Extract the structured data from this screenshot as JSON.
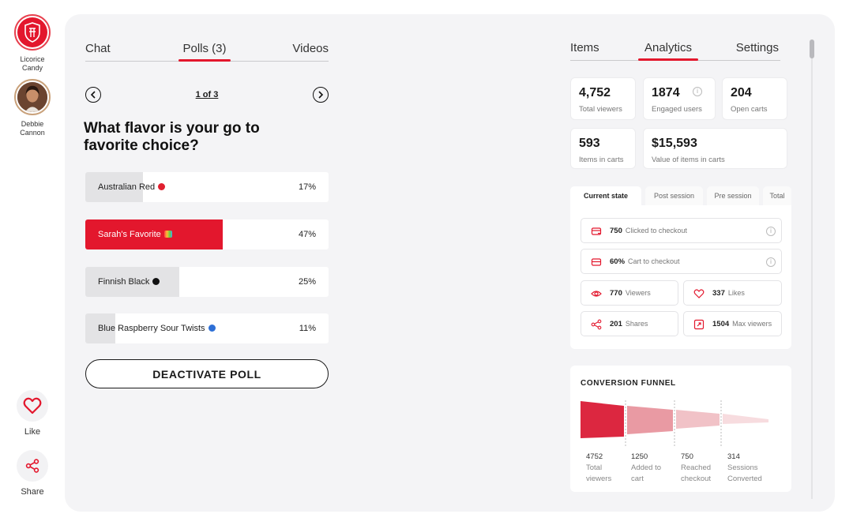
{
  "hosts": [
    {
      "name_line1": "Licorice",
      "name_line2": "Candy"
    },
    {
      "name_line1": "Debbie",
      "name_line2": "Cannon"
    }
  ],
  "rail_actions": {
    "like": "Like",
    "share": "Share"
  },
  "left_tabs": [
    {
      "label": "Chat",
      "active": false
    },
    {
      "label": "Polls (3)",
      "active": true
    },
    {
      "label": "Videos",
      "active": false
    }
  ],
  "poll": {
    "pager": "1 of 3",
    "question": "What flavor is your go to favorite choice?",
    "options": [
      {
        "label": "Australian Red",
        "percent_label": "17%",
        "percent": 17,
        "emoji_color": "#e0202f",
        "selected": false
      },
      {
        "label": "Sarah's Favorite",
        "percent_label": "47%",
        "percent": 47,
        "emoji_color": "rainbow",
        "selected": true
      },
      {
        "label": "Finnish Black",
        "percent_label": "25%",
        "percent": 25,
        "emoji_color": "#111111",
        "selected": false
      },
      {
        "label": "Blue Raspberry Sour Twists",
        "percent_label": "11%",
        "percent": 11,
        "emoji_color": "#2d6fd6",
        "selected": false
      }
    ],
    "deactivate_label": "DEACTIVATE POLL"
  },
  "right_tabs": [
    {
      "label": "Items",
      "active": false
    },
    {
      "label": "Analytics",
      "active": true
    },
    {
      "label": "Settings",
      "active": false
    }
  ],
  "stats": {
    "total_viewers": {
      "value": "4,752",
      "label": "Total viewers"
    },
    "engaged_users": {
      "value": "1874",
      "label": "Engaged users"
    },
    "open_carts": {
      "value": "204",
      "label": "Open carts"
    },
    "items_in_carts": {
      "value": "593",
      "label": "Items in carts"
    },
    "value_in_carts": {
      "value": "$15,593",
      "label": "Value of items in carts"
    }
  },
  "session_tabs": [
    {
      "label": "Current state",
      "active": true
    },
    {
      "label": "Post session",
      "active": false
    },
    {
      "label": "Pre session",
      "active": false
    },
    {
      "label": "Total",
      "active": false
    }
  ],
  "metrics": {
    "clicked_checkout": {
      "value": "750",
      "label": "Clicked to checkout"
    },
    "cart_checkout": {
      "value": "60%",
      "label": "Cart to checkout"
    },
    "viewers": {
      "value": "770",
      "label": "Viewers"
    },
    "likes": {
      "value": "337",
      "label": "Likes"
    },
    "shares": {
      "value": "201",
      "label": "Shares"
    },
    "max_viewers": {
      "value": "1504",
      "label": "Max viewers"
    }
  },
  "funnel": {
    "title": "CONVERSION FUNNEL",
    "stages": [
      {
        "value": "4752",
        "line1": "Total",
        "line2": "viewers"
      },
      {
        "value": "1250",
        "line1": "Added to",
        "line2": "cart"
      },
      {
        "value": "750",
        "line1": "Reached",
        "line2": "checkout"
      },
      {
        "value": "314",
        "line1": "Sessions",
        "line2": "Converted"
      }
    ]
  },
  "colors": {
    "accent": "#e3172d",
    "bar_gray": "#e3e3e5",
    "card_bg": "#f4f4f6"
  },
  "icons": [
    "brand-logo-icon",
    "avatar-photo",
    "heart-icon",
    "share-icon",
    "chevron-left-icon",
    "chevron-right-icon",
    "info-icon",
    "checkout-icon",
    "card-icon",
    "eye-icon",
    "heart-outline-icon",
    "share-nodes-icon",
    "expand-icon"
  ]
}
